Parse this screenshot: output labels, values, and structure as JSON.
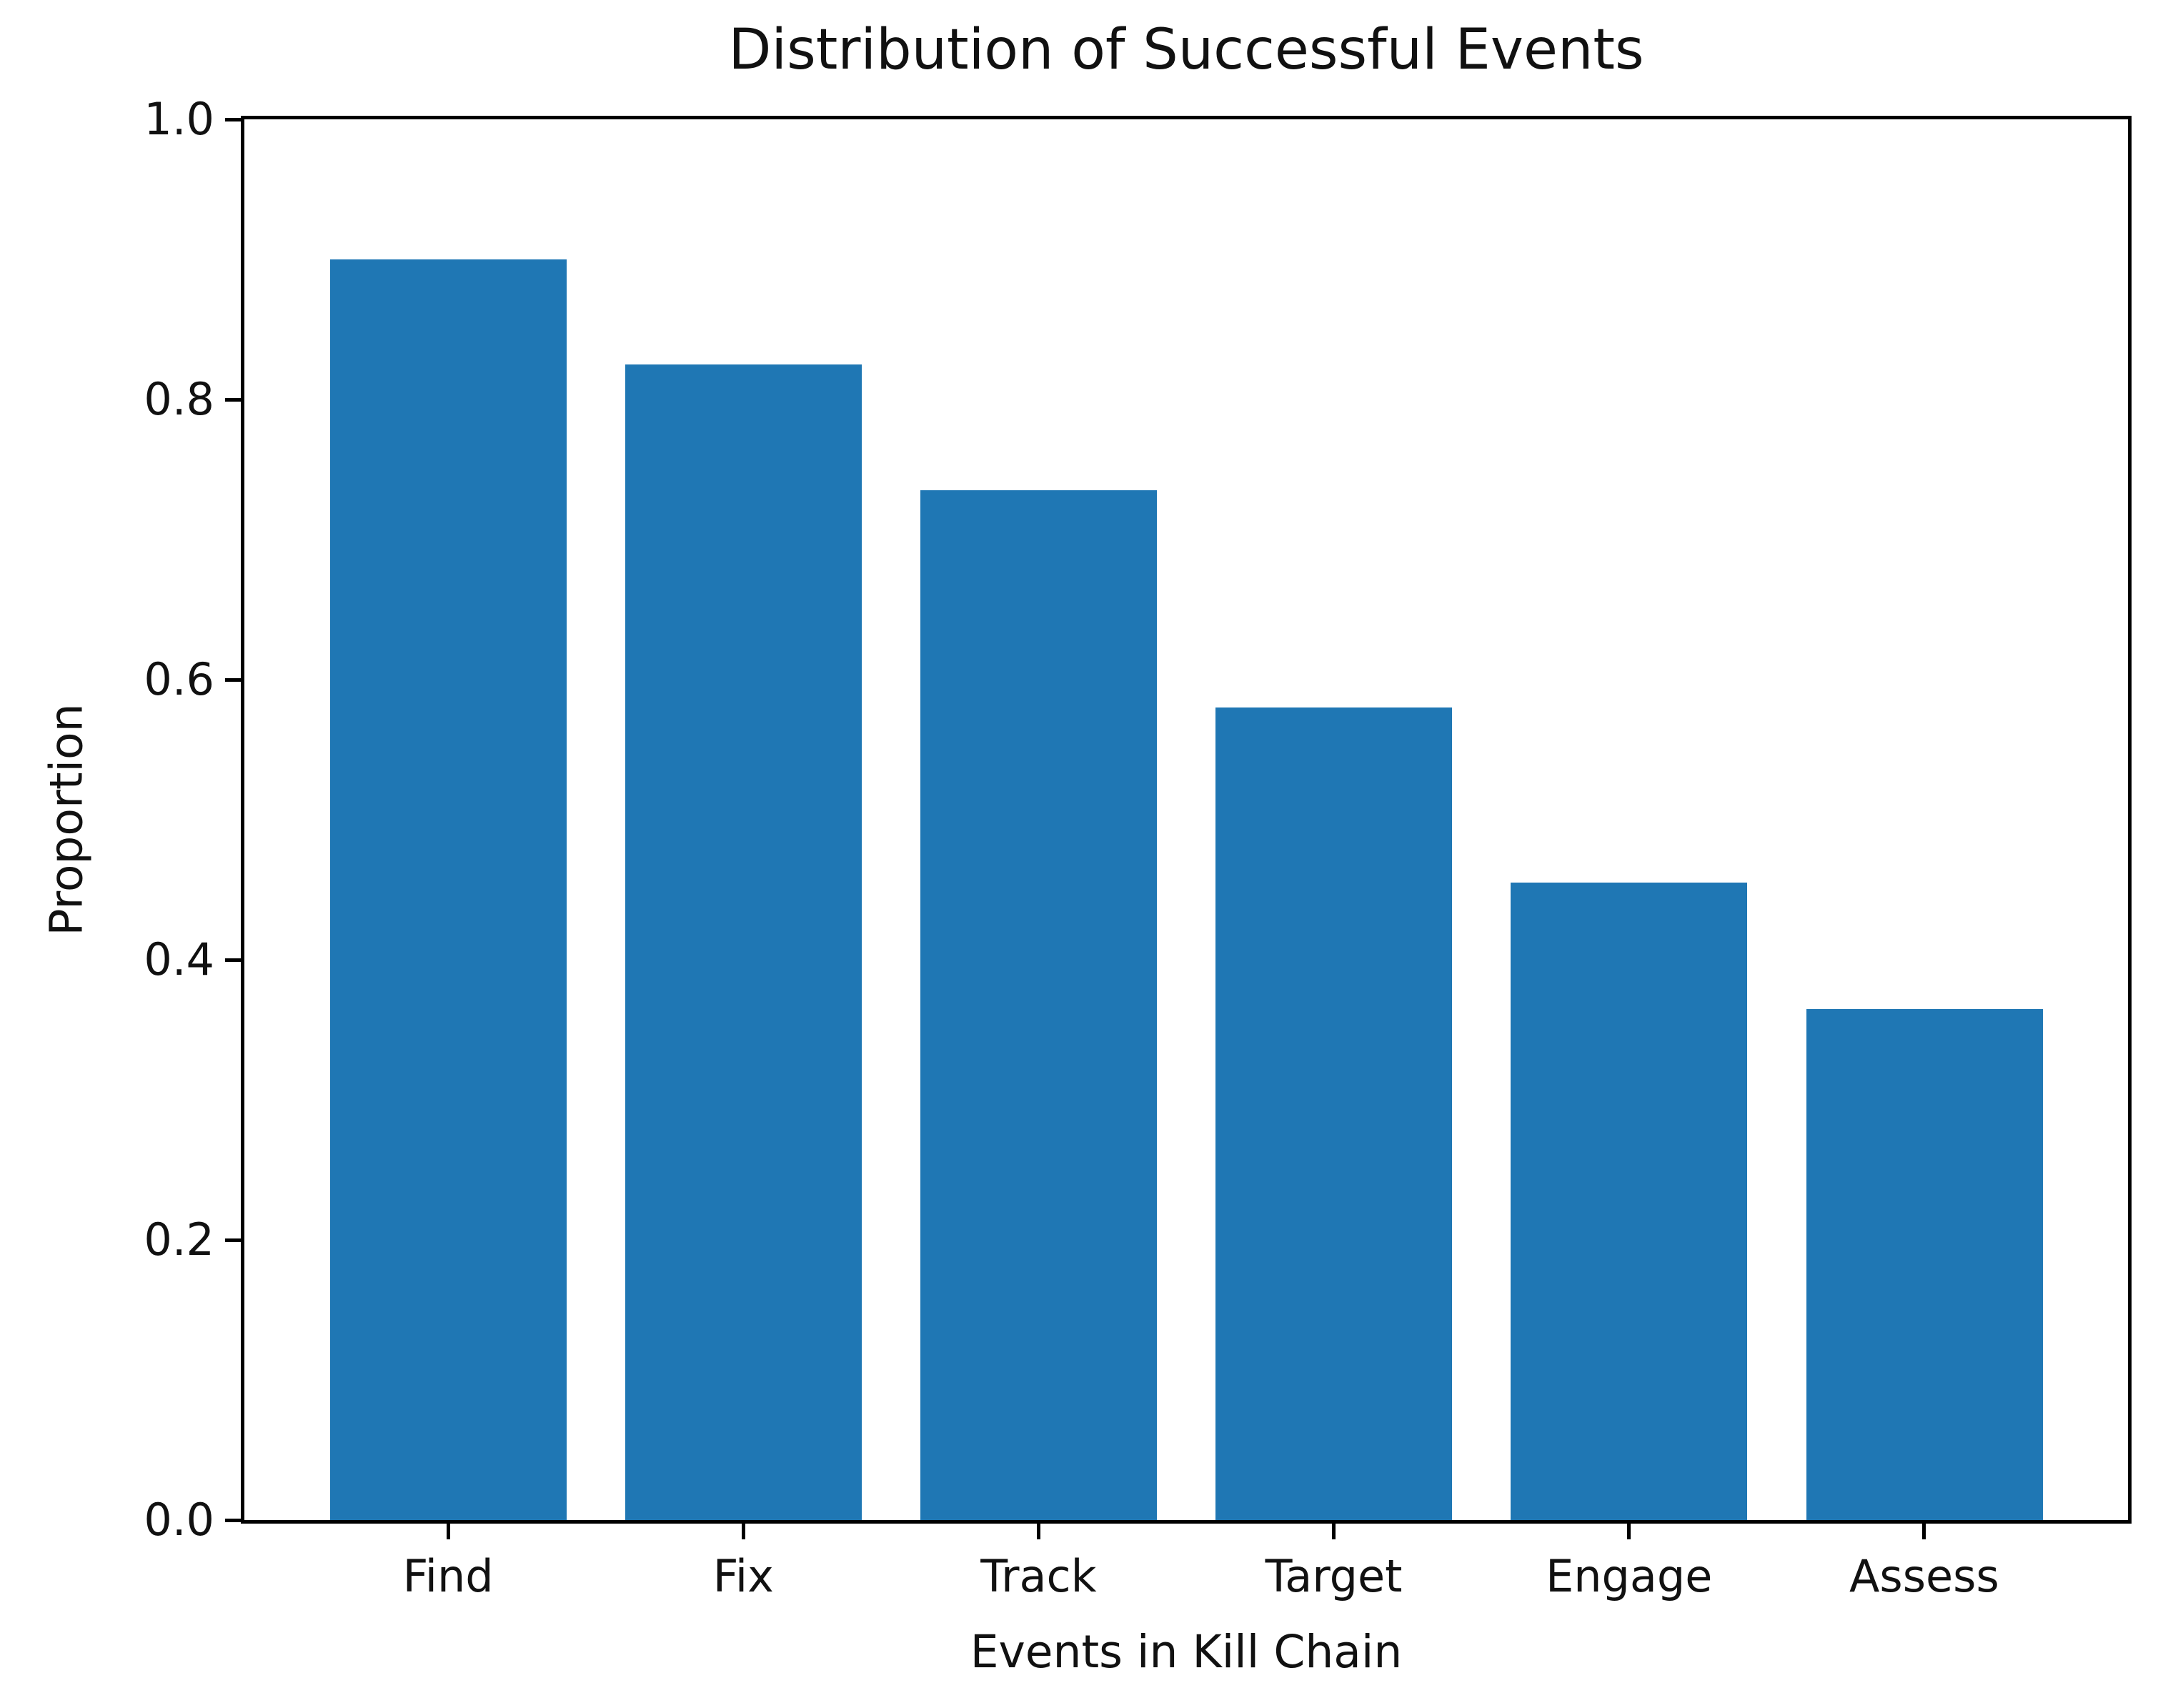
{
  "chart_data": {
    "type": "bar",
    "title": "Distribution of Successful Events",
    "xlabel": "Events in Kill Chain",
    "ylabel": "Proportion",
    "categories": [
      "Find",
      "Fix",
      "Track",
      "Target",
      "Engage",
      "Assess"
    ],
    "values": [
      0.9,
      0.825,
      0.735,
      0.58,
      0.455,
      0.365
    ],
    "yticks": {
      "values": [
        0.0,
        0.2,
        0.4,
        0.6,
        0.8,
        1.0
      ],
      "labels": [
        "0.0",
        "0.2",
        "0.4",
        "0.6",
        "0.8",
        "1.0"
      ]
    },
    "ylim": [
      0,
      1.0
    ],
    "xlim": [
      -0.69,
      5.69
    ],
    "bar_width_data_units": 0.8,
    "bar_color": "#1f77b4",
    "grid": false,
    "legend": "none",
    "spines": "all-black"
  }
}
